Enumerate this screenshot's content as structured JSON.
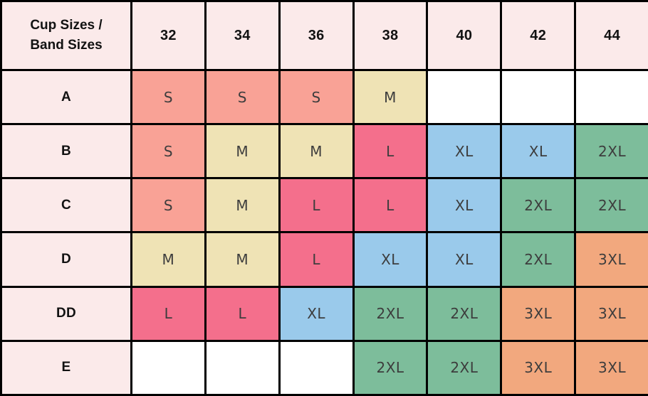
{
  "table": {
    "corner": {
      "line1": "Cup Sizes /",
      "line2": "Band Sizes"
    },
    "band_sizes": [
      "32",
      "34",
      "36",
      "38",
      "40",
      "42",
      "44"
    ],
    "rows": [
      {
        "cup": "A",
        "cells": [
          "S",
          "S",
          "S",
          "M",
          "",
          "",
          ""
        ]
      },
      {
        "cup": "B",
        "cells": [
          "S",
          "M",
          "M",
          "L",
          "XL",
          "XL",
          "2XL"
        ]
      },
      {
        "cup": "C",
        "cells": [
          "S",
          "M",
          "L",
          "L",
          "XL",
          "2XL",
          "2XL"
        ]
      },
      {
        "cup": "D",
        "cells": [
          "M",
          "M",
          "L",
          "XL",
          "XL",
          "2XL",
          "3XL"
        ]
      },
      {
        "cup": "DD",
        "cells": [
          "L",
          "L",
          "XL",
          "2XL",
          "2XL",
          "3XL",
          "3XL"
        ]
      },
      {
        "cup": "E",
        "cells": [
          "",
          "",
          "",
          "2XL",
          "2XL",
          "3XL",
          "3XL"
        ]
      }
    ]
  },
  "colors": {
    "border": "#000000",
    "header_bg": "#FBEAEA",
    "header_text": "#121212",
    "cell_text": "#3D3D3D",
    "size_fill": {
      "S": "#F9A296",
      "M": "#EFE3B5",
      "L": "#F46F8C",
      "XL": "#9ACAEB",
      "2XL": "#7DBD9B",
      "3XL": "#F2A87E",
      "": "#FFFFFF"
    }
  },
  "chart_data": {
    "type": "table",
    "columns": [
      "Cup Sizes / Band Sizes",
      "32",
      "34",
      "36",
      "38",
      "40",
      "42",
      "44"
    ],
    "rows": [
      [
        "A",
        "S",
        "S",
        "S",
        "M",
        "",
        "",
        ""
      ],
      [
        "B",
        "S",
        "M",
        "M",
        "L",
        "XL",
        "XL",
        "2XL"
      ],
      [
        "C",
        "S",
        "M",
        "L",
        "L",
        "XL",
        "2XL",
        "2XL"
      ],
      [
        "D",
        "M",
        "M",
        "L",
        "XL",
        "XL",
        "2XL",
        "3XL"
      ],
      [
        "DD",
        "L",
        "L",
        "XL",
        "2XL",
        "2XL",
        "3XL",
        "3XL"
      ],
      [
        "E",
        "",
        "",
        "",
        "2XL",
        "2XL",
        "3XL",
        "3XL"
      ]
    ],
    "cell_fill_by_value": {
      "S": "#F9A296",
      "M": "#EFE3B5",
      "L": "#F46F8C",
      "XL": "#9ACAEB",
      "2XL": "#7DBD9B",
      "3XL": "#F2A87E",
      "": "#FFFFFF"
    },
    "grid": true,
    "legend_position": "none"
  }
}
